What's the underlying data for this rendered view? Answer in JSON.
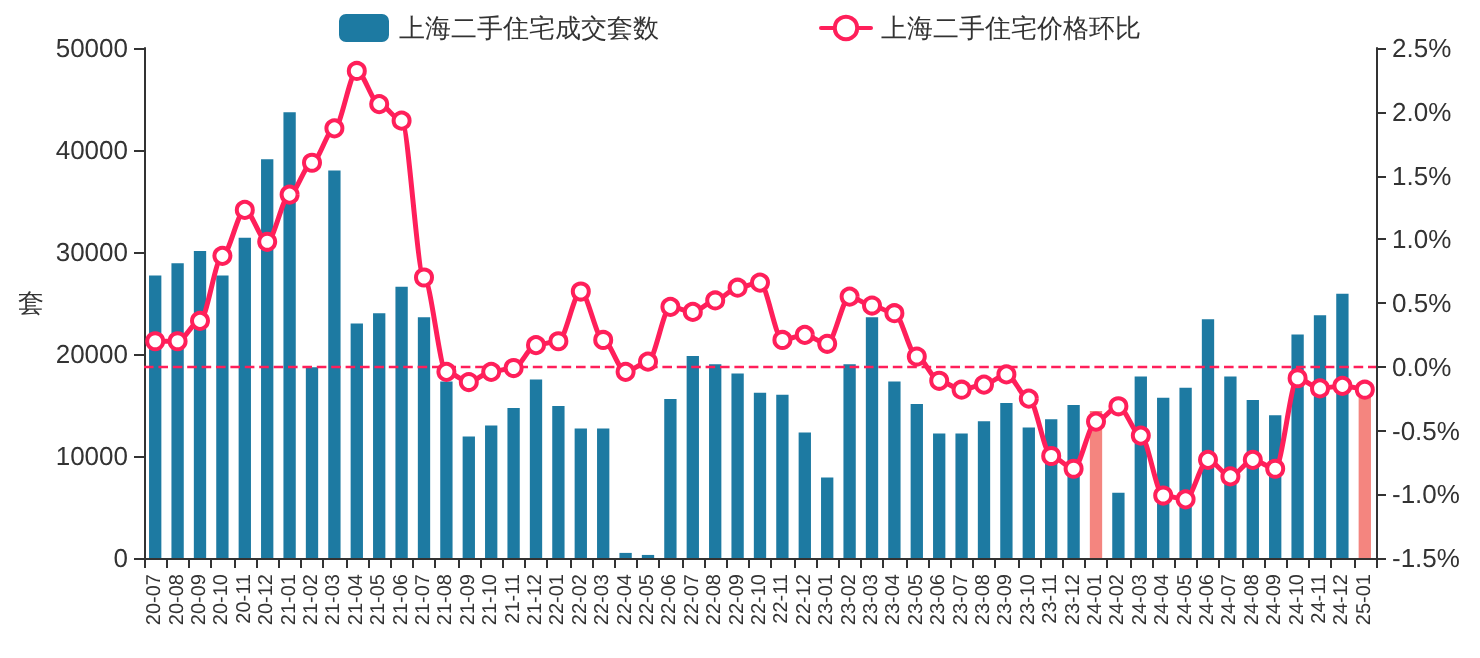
{
  "chart_data": {
    "type": "bar",
    "ylabel": "套",
    "categories": [
      "20-07",
      "20-08",
      "20-09",
      "20-10",
      "20-11",
      "20-12",
      "21-01",
      "21-02",
      "21-03",
      "21-04",
      "21-05",
      "21-06",
      "21-07",
      "21-08",
      "21-09",
      "21-10",
      "21-11",
      "21-12",
      "22-01",
      "22-02",
      "22-03",
      "22-04",
      "22-05",
      "22-06",
      "22-07",
      "22-08",
      "22-09",
      "22-10",
      "22-11",
      "22-12",
      "23-01",
      "23-02",
      "23-03",
      "23-04",
      "23-05",
      "23-06",
      "23-07",
      "23-08",
      "23-09",
      "23-10",
      "23-11",
      "23-12",
      "24-01",
      "24-02",
      "24-03",
      "24-04",
      "24-05",
      "24-06",
      "24-07",
      "24-08",
      "24-09",
      "24-10",
      "24-11",
      "24-12",
      "25-01"
    ],
    "series": [
      {
        "name": "上海二手住宅成交套数",
        "color": "#1d7aa2",
        "colors": [
          "#1d7aa2",
          "#1d7aa2",
          "#1d7aa2",
          "#1d7aa2",
          "#1d7aa2",
          "#1d7aa2",
          "#1d7aa2",
          "#1d7aa2",
          "#1d7aa2",
          "#1d7aa2",
          "#1d7aa2",
          "#1d7aa2",
          "#1d7aa2",
          "#1d7aa2",
          "#1d7aa2",
          "#1d7aa2",
          "#1d7aa2",
          "#1d7aa2",
          "#1d7aa2",
          "#1d7aa2",
          "#1d7aa2",
          "#1d7aa2",
          "#1d7aa2",
          "#1d7aa2",
          "#1d7aa2",
          "#1d7aa2",
          "#1d7aa2",
          "#1d7aa2",
          "#1d7aa2",
          "#1d7aa2",
          "#1d7aa2",
          "#1d7aa2",
          "#1d7aa2",
          "#1d7aa2",
          "#1d7aa2",
          "#1d7aa2",
          "#1d7aa2",
          "#1d7aa2",
          "#1d7aa2",
          "#1d7aa2",
          "#1d7aa2",
          "#1d7aa2",
          "#f4857f",
          "#1d7aa2",
          "#1d7aa2",
          "#1d7aa2",
          "#1d7aa2",
          "#1d7aa2",
          "#1d7aa2",
          "#1d7aa2",
          "#1d7aa2",
          "#1d7aa2",
          "#1d7aa2",
          "#1d7aa2",
          "#f4857f"
        ],
        "values": [
          27700,
          28900,
          30100,
          27700,
          31400,
          39100,
          43700,
          18700,
          38000,
          23000,
          24000,
          26600,
          23600,
          17300,
          11900,
          13000,
          14700,
          17500,
          14900,
          12700,
          12700,
          500,
          300,
          15600,
          19800,
          19000,
          18100,
          16200,
          16000,
          12300,
          7900,
          19000,
          23600,
          17300,
          15100,
          12200,
          12200,
          13400,
          15200,
          12800,
          13600,
          15000,
          14400,
          6400,
          17800,
          15700,
          16700,
          23400,
          17800,
          15500,
          14000,
          21900,
          23800,
          25900,
          16000
        ]
      },
      {
        "name": "上海二手住宅价格环比",
        "type": "line",
        "axis": "y2",
        "color": "#ff1f5a",
        "values": [
          0.2,
          0.2,
          0.36,
          0.87,
          1.23,
          0.98,
          1.35,
          1.6,
          1.87,
          2.32,
          2.06,
          1.93,
          0.7,
          -0.04,
          -0.12,
          -0.04,
          -0.01,
          0.17,
          0.2,
          0.59,
          0.21,
          -0.04,
          0.04,
          0.47,
          0.43,
          0.52,
          0.62,
          0.66,
          0.21,
          0.25,
          0.18,
          0.55,
          0.48,
          0.42,
          0.08,
          -0.11,
          -0.18,
          -0.14,
          -0.06,
          -0.25,
          -0.7,
          -0.8,
          -0.43,
          -0.31,
          -0.54,
          -1.01,
          -1.04,
          -0.73,
          -0.86,
          -0.73,
          -0.8,
          -0.09,
          -0.17,
          -0.15,
          -0.18
        ]
      }
    ],
    "ylim": [
      0,
      50000
    ],
    "yticks": [
      0,
      10000,
      20000,
      30000,
      40000,
      50000
    ],
    "y2lim": [
      -1.5,
      2.5
    ],
    "y2ticks": [
      {
        "value": -1.5,
        "label": "-1.5%"
      },
      {
        "value": -1.0,
        "label": "-1.0%"
      },
      {
        "value": -0.5,
        "label": "-0.5%"
      },
      {
        "value": 0,
        "label": "0.0%"
      },
      {
        "value": 0.5,
        "label": "0.5%"
      },
      {
        "value": 1.0,
        "label": "1.0%"
      },
      {
        "value": 1.5,
        "label": "1.5%"
      },
      {
        "value": 2.0,
        "label": "2.0%"
      },
      {
        "value": 2.5,
        "label": "2.5%"
      }
    ],
    "ref_lines": [
      {
        "axis": "y2",
        "value": 0,
        "color": "#ff1f5a",
        "line_style": "dashed"
      }
    ],
    "grid": false,
    "legend": "top",
    "marker": "circle"
  }
}
